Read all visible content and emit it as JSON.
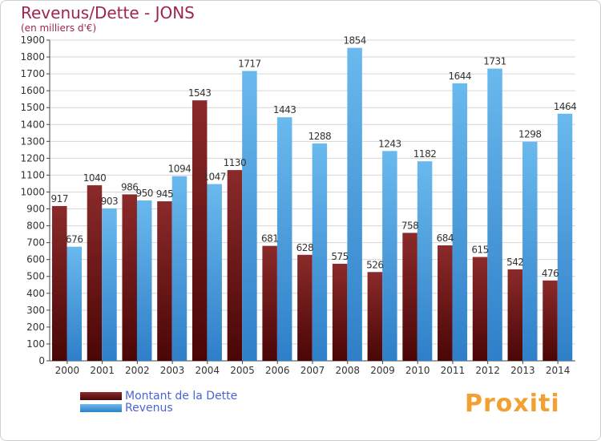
{
  "title": "Revenus/Dette - JONS",
  "subtitle": "(en milliers d'€)",
  "logo_text": "Proxiti",
  "colors": {
    "dette_top": "#8b2a2a",
    "dette_bottom": "#4a0606",
    "revenus_top": "#6ab9ee",
    "revenus_bottom": "#2e7fc8",
    "grid": "#d6d6d6",
    "axis": "#444444"
  },
  "chart_data": {
    "type": "bar",
    "categories": [
      "2000",
      "2001",
      "2002",
      "2003",
      "2004",
      "2005",
      "2006",
      "2007",
      "2008",
      "2009",
      "2010",
      "2011",
      "2012",
      "2013",
      "2014"
    ],
    "series": [
      {
        "name": "Montant de la Dette",
        "values": [
          917,
          1040,
          986,
          945,
          1543,
          1130,
          681,
          628,
          575,
          526,
          758,
          684,
          615,
          542,
          476
        ]
      },
      {
        "name": "Revenus",
        "values": [
          676,
          903,
          950,
          1094,
          1047,
          1717,
          1443,
          1288,
          1854,
          1243,
          1182,
          1644,
          1731,
          1298,
          1464
        ]
      }
    ],
    "ylim": [
      0,
      1900
    ],
    "ytick_step": 100,
    "grid": true,
    "legend_position": "bottom-left"
  }
}
